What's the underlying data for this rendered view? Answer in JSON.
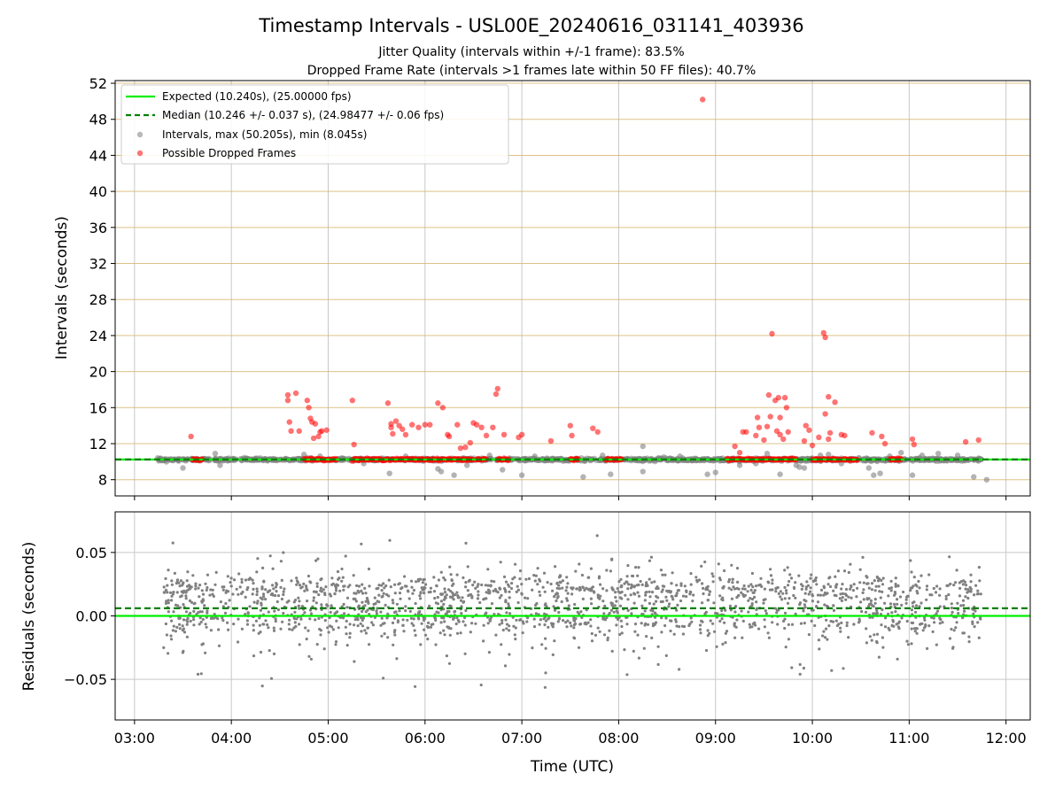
{
  "chart_data": [
    {
      "type": "scatter",
      "title": "Timestamp Intervals - USL00E_20240616_031141_403936",
      "subtitle_lines": [
        "Jitter Quality (intervals within +/-1 frame): 83.5%",
        "Dropped Frame Rate (intervals >1 frames late within 50 FF files): 40.7%"
      ],
      "ylabel": "Intervals (seconds)",
      "xlim": [
        "02:48",
        "12:15"
      ],
      "ylim": [
        6.2,
        52.3
      ],
      "y_ticks": [
        8,
        12,
        16,
        20,
        24,
        28,
        32,
        36,
        40,
        44,
        48,
        52
      ],
      "grid": "horizontal lines (tan) and vertical lines (gray)",
      "legend_position": "upper-left",
      "legend": [
        "Expected (10.240s), (25.00000 fps)",
        "Median (10.246 +/- 0.037 s), (24.98477 +/- 0.06 fps)",
        "Intervals, max (50.205s), min (8.045s)",
        "Possible Dropped Frames"
      ],
      "lines": [
        {
          "name": "Expected",
          "y": 10.24,
          "color": "#00ee00",
          "style": "solid"
        },
        {
          "name": "Median",
          "y": 10.246,
          "color": "#008000",
          "style": "dashed"
        }
      ],
      "series": [
        {
          "name": "Intervals",
          "color": "#808080",
          "points": [
            [
              "03:18",
              10.2
            ],
            [
              "03:30",
              9.3
            ],
            [
              "03:50",
              10.9
            ],
            [
              "03:53",
              9.6
            ],
            [
              "04:08",
              10.3
            ],
            [
              "04:18",
              10.4
            ],
            [
              "04:45",
              10.8
            ],
            [
              "04:55",
              10.6
            ],
            [
              "05:22",
              9.8
            ],
            [
              "05:38",
              8.7
            ],
            [
              "05:48",
              10.6
            ],
            [
              "06:08",
              9.2
            ],
            [
              "06:10",
              8.9
            ],
            [
              "06:18",
              8.5
            ],
            [
              "06:26",
              9.6
            ],
            [
              "06:40",
              10.7
            ],
            [
              "06:48",
              9.1
            ],
            [
              "07:00",
              8.5
            ],
            [
              "07:08",
              10.6
            ],
            [
              "07:22",
              10.3
            ],
            [
              "07:38",
              8.3
            ],
            [
              "07:50",
              10.7
            ],
            [
              "07:55",
              8.6
            ],
            [
              "08:15",
              11.7
            ],
            [
              "08:15",
              8.9
            ],
            [
              "08:28",
              10.5
            ],
            [
              "08:38",
              10.6
            ],
            [
              "08:55",
              8.6
            ],
            [
              "09:00",
              8.8
            ],
            [
              "09:15",
              9.6
            ],
            [
              "09:25",
              9.8
            ],
            [
              "09:32",
              10.9
            ],
            [
              "09:40",
              8.6
            ],
            [
              "09:50",
              9.6
            ],
            [
              "09:52",
              9.4
            ],
            [
              "09:55",
              9.3
            ],
            [
              "10:05",
              10.7
            ],
            [
              "10:10",
              10.8
            ],
            [
              "10:18",
              9.8
            ],
            [
              "10:35",
              9.3
            ],
            [
              "10:38",
              8.5
            ],
            [
              "10:42",
              8.7
            ],
            [
              "10:48",
              10.6
            ],
            [
              "10:55",
              11.0
            ],
            [
              "11:02",
              8.5
            ],
            [
              "11:08",
              10.7
            ],
            [
              "11:18",
              10.9
            ],
            [
              "11:30",
              10.7
            ],
            [
              "11:40",
              8.3
            ],
            [
              "11:48",
              8.0
            ]
          ]
        },
        {
          "name": "Possible Dropped Frames",
          "color": "#ff0000",
          "points": [
            [
              "03:35",
              12.8
            ],
            [
              "04:35",
              17.4
            ],
            [
              "04:35",
              16.8
            ],
            [
              "04:36",
              14.4
            ],
            [
              "04:37",
              13.4
            ],
            [
              "04:40",
              17.6
            ],
            [
              "04:42",
              13.4
            ],
            [
              "04:47",
              16.8
            ],
            [
              "04:48",
              16.0
            ],
            [
              "04:49",
              14.8
            ],
            [
              "04:50",
              14.4
            ],
            [
              "04:51",
              12.6
            ],
            [
              "04:52",
              14.2
            ],
            [
              "04:54",
              12.8
            ],
            [
              "04:55",
              13.3
            ],
            [
              "04:56",
              13.4
            ],
            [
              "04:59",
              13.5
            ],
            [
              "05:15",
              16.8
            ],
            [
              "05:16",
              11.9
            ],
            [
              "05:37",
              16.5
            ],
            [
              "05:39",
              14.2
            ],
            [
              "05:39",
              13.8
            ],
            [
              "05:40",
              13.1
            ],
            [
              "05:42",
              14.5
            ],
            [
              "05:44",
              14.0
            ],
            [
              "05:46",
              13.6
            ],
            [
              "05:48",
              13.0
            ],
            [
              "05:52",
              14.1
            ],
            [
              "05:56",
              13.8
            ],
            [
              "06:00",
              14.1
            ],
            [
              "06:03",
              14.1
            ],
            [
              "06:08",
              16.5
            ],
            [
              "06:11",
              16.0
            ],
            [
              "06:14",
              13.0
            ],
            [
              "06:15",
              12.8
            ],
            [
              "06:20",
              14.1
            ],
            [
              "06:22",
              11.5
            ],
            [
              "06:25",
              11.6
            ],
            [
              "06:28",
              12.1
            ],
            [
              "06:30",
              14.3
            ],
            [
              "06:32",
              14.1
            ],
            [
              "06:35",
              13.8
            ],
            [
              "06:38",
              12.9
            ],
            [
              "06:42",
              13.8
            ],
            [
              "06:44",
              17.5
            ],
            [
              "06:45",
              18.1
            ],
            [
              "06:49",
              13.0
            ],
            [
              "06:58",
              12.7
            ],
            [
              "07:00",
              13.0
            ],
            [
              "07:18",
              12.3
            ],
            [
              "07:30",
              14.0
            ],
            [
              "07:31",
              12.9
            ],
            [
              "07:44",
              13.7
            ],
            [
              "07:47",
              13.3
            ],
            [
              "08:52",
              50.2
            ],
            [
              "09:12",
              11.7
            ],
            [
              "09:15",
              11.0
            ],
            [
              "09:17",
              13.3
            ],
            [
              "09:19",
              13.3
            ],
            [
              "09:25",
              12.9
            ],
            [
              "09:26",
              14.9
            ],
            [
              "09:27",
              13.8
            ],
            [
              "09:30",
              12.4
            ],
            [
              "09:32",
              13.9
            ],
            [
              "09:33",
              17.4
            ],
            [
              "09:34",
              15.0
            ],
            [
              "09:35",
              24.2
            ],
            [
              "09:37",
              16.8
            ],
            [
              "09:38",
              13.4
            ],
            [
              "09:39",
              17.1
            ],
            [
              "09:40",
              14.9
            ],
            [
              "09:40",
              13.0
            ],
            [
              "09:42",
              12.5
            ],
            [
              "09:43",
              17.1
            ],
            [
              "09:44",
              16.0
            ],
            [
              "09:45",
              13.3
            ],
            [
              "09:55",
              12.3
            ],
            [
              "09:56",
              14.0
            ],
            [
              "09:58",
              13.5
            ],
            [
              "10:00",
              11.8
            ],
            [
              "10:04",
              12.7
            ],
            [
              "10:07",
              24.3
            ],
            [
              "10:08",
              15.3
            ],
            [
              "10:08",
              23.8
            ],
            [
              "10:10",
              17.2
            ],
            [
              "10:10",
              12.5
            ],
            [
              "10:11",
              13.2
            ],
            [
              "10:14",
              16.6
            ],
            [
              "10:18",
              13.0
            ],
            [
              "10:20",
              12.9
            ],
            [
              "10:37",
              13.2
            ],
            [
              "10:43",
              12.8
            ],
            [
              "10:45",
              12.0
            ],
            [
              "11:02",
              12.5
            ],
            [
              "11:03",
              11.9
            ],
            [
              "11:35",
              12.2
            ],
            [
              "11:43",
              12.4
            ]
          ],
          "clusters": [
            {
              "from": "03:36",
              "to": "03:42",
              "y": 10.25
            },
            {
              "from": "04:45",
              "to": "05:05",
              "y": 10.25
            },
            {
              "from": "05:15",
              "to": "06:30",
              "y": 10.25
            },
            {
              "from": "06:32",
              "to": "06:38",
              "y": 10.25
            },
            {
              "from": "06:45",
              "to": "06:52",
              "y": 10.25
            },
            {
              "from": "07:30",
              "to": "07:35",
              "y": 10.25
            },
            {
              "from": "07:52",
              "to": "08:02",
              "y": 10.25
            },
            {
              "from": "09:07",
              "to": "09:50",
              "y": 10.25
            },
            {
              "from": "10:00",
              "to": "10:28",
              "y": 10.25
            },
            {
              "from": "10:48",
              "to": "10:55",
              "y": 10.25
            }
          ]
        }
      ],
      "scatter_band": {
        "color": "#808080",
        "from": "03:14",
        "to": "11:45",
        "y_center": 10.23,
        "spread": 0.14
      }
    },
    {
      "type": "scatter",
      "xlabel": "Time (UTC)",
      "ylabel": "Residuals (seconds)",
      "xlim": [
        "02:48",
        "12:15"
      ],
      "x_ticks": [
        "03:00",
        "04:00",
        "05:00",
        "06:00",
        "07:00",
        "08:00",
        "09:00",
        "10:00",
        "11:00",
        "12:00"
      ],
      "ylim": [
        -0.082,
        0.082
      ],
      "y_ticks": [
        0.05,
        0.0,
        -0.05
      ],
      "y_tick_labels": [
        "0.05",
        "0.00",
        "−0.05"
      ],
      "grid": "both",
      "lines": [
        {
          "name": "Expected",
          "y": 0.0,
          "color": "#00ee00",
          "style": "solid"
        },
        {
          "name": "Median",
          "y": 0.006,
          "color": "#008000",
          "style": "dashed"
        }
      ],
      "series": [
        {
          "name": "Residuals",
          "color": "#808080",
          "from": "03:18",
          "to": "11:45",
          "approx_count": 1900,
          "bands": [
            0.021,
            -0.001
          ],
          "spread_sd": 0.02
        }
      ]
    }
  ]
}
